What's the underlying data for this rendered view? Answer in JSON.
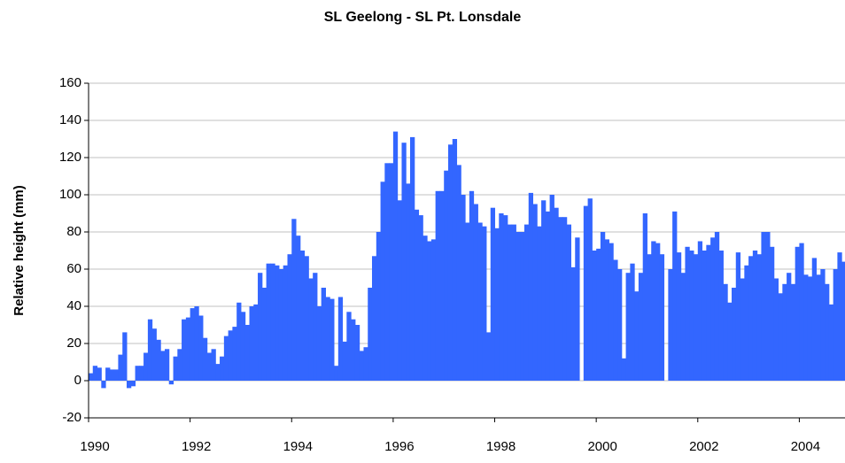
{
  "chart_data": {
    "type": "bar",
    "title": "SL Geelong - SL Pt. Lonsdale",
    "y_label": "Relative height (mm)",
    "color": "#3366ff",
    "grid": true,
    "xlim": [
      1990,
      2004.9
    ],
    "xticks": [
      1990,
      1992,
      1994,
      1996,
      1998,
      2000,
      2002,
      2004
    ],
    "ylim": [
      -20,
      160
    ],
    "yticks": [
      -20,
      0,
      20,
      40,
      60,
      80,
      100,
      120,
      140,
      160
    ],
    "x": [
      1990,
      1990.083,
      1990.167,
      1990.25,
      1990.333,
      1990.417,
      1990.5,
      1990.583,
      1990.667,
      1990.75,
      1990.833,
      1990.917,
      1991,
      1991.083,
      1991.167,
      1991.25,
      1991.333,
      1991.417,
      1991.5,
      1991.583,
      1991.667,
      1991.75,
      1991.833,
      1991.917,
      1992,
      1992.083,
      1992.167,
      1992.25,
      1992.333,
      1992.417,
      1992.5,
      1992.583,
      1992.667,
      1992.75,
      1992.833,
      1992.917,
      1993,
      1993.083,
      1993.167,
      1993.25,
      1993.333,
      1993.417,
      1993.5,
      1993.583,
      1993.667,
      1993.75,
      1993.833,
      1993.917,
      1994,
      1994.083,
      1994.167,
      1994.25,
      1994.333,
      1994.417,
      1994.5,
      1994.583,
      1994.667,
      1994.75,
      1994.833,
      1994.917,
      1995,
      1995.083,
      1995.167,
      1995.25,
      1995.333,
      1995.417,
      1995.5,
      1995.583,
      1995.667,
      1995.75,
      1995.833,
      1995.917,
      1996,
      1996.083,
      1996.167,
      1996.25,
      1996.333,
      1996.417,
      1996.5,
      1996.583,
      1996.667,
      1996.75,
      1996.833,
      1996.917,
      1997,
      1997.083,
      1997.167,
      1997.25,
      1997.333,
      1997.417,
      1997.5,
      1997.583,
      1997.667,
      1997.75,
      1997.833,
      1997.917,
      1998,
      1998.083,
      1998.167,
      1998.25,
      1998.333,
      1998.417,
      1998.5,
      1998.583,
      1998.667,
      1998.75,
      1998.833,
      1998.917,
      1999,
      1999.083,
      1999.167,
      1999.25,
      1999.333,
      1999.417,
      1999.5,
      1999.583,
      1999.667,
      1999.75,
      1999.833,
      1999.917,
      2000,
      2000.083,
      2000.167,
      2000.25,
      2000.333,
      2000.417,
      2000.5,
      2000.583,
      2000.667,
      2000.75,
      2000.833,
      2000.917,
      2001,
      2001.083,
      2001.167,
      2001.25,
      2001.333,
      2001.417,
      2001.5,
      2001.583,
      2001.667,
      2001.75,
      2001.833,
      2001.917,
      2002,
      2002.083,
      2002.167,
      2002.25,
      2002.333,
      2002.417,
      2002.5,
      2002.583,
      2002.667,
      2002.75,
      2002.833,
      2002.917,
      2003,
      2003.083,
      2003.167,
      2003.25,
      2003.333,
      2003.417,
      2003.5,
      2003.583,
      2003.667,
      2003.75,
      2003.833,
      2003.917,
      2004,
      2004.083,
      2004.167,
      2004.25,
      2004.333,
      2004.417,
      2004.5,
      2004.583,
      2004.667,
      2004.75,
      2004.833
    ],
    "values": [
      4,
      8,
      7,
      -4,
      7,
      6,
      6,
      14,
      26,
      -4,
      -3,
      8,
      8,
      15,
      33,
      28,
      22,
      16,
      17,
      -2,
      13,
      17,
      33,
      34,
      39,
      40,
      35,
      23,
      15,
      17,
      9,
      13,
      24,
      27,
      29,
      42,
      37,
      30,
      40,
      41,
      58,
      50,
      63,
      63,
      62,
      60,
      62,
      68,
      87,
      78,
      70,
      67,
      55,
      58,
      40,
      50,
      45,
      44,
      8,
      45,
      21,
      37,
      33,
      30,
      16,
      18,
      50,
      67,
      80,
      107,
      117,
      117,
      134,
      97,
      128,
      106,
      131,
      92,
      89,
      78,
      75,
      76,
      102,
      102,
      113,
      127,
      130,
      116,
      100,
      85,
      102,
      95,
      85,
      83,
      26,
      93,
      82,
      90,
      89,
      84,
      84,
      80,
      80,
      84,
      101,
      95,
      83,
      97,
      91,
      100,
      93,
      88,
      88,
      84,
      61,
      77,
      null,
      94,
      98,
      70,
      71,
      80,
      76,
      74,
      65,
      60,
      12,
      58,
      63,
      48,
      58,
      90,
      68,
      75,
      74,
      68,
      null,
      60,
      91,
      69,
      58,
      72,
      70,
      68,
      75,
      70,
      73,
      77,
      80,
      70,
      52,
      42,
      50,
      69,
      55,
      62,
      67,
      70,
      68,
      80,
      80,
      72,
      55,
      47,
      52,
      58,
      52,
      72,
      74,
      57,
      56,
      66,
      57,
      60,
      52,
      41,
      60,
      69,
      64
    ]
  }
}
